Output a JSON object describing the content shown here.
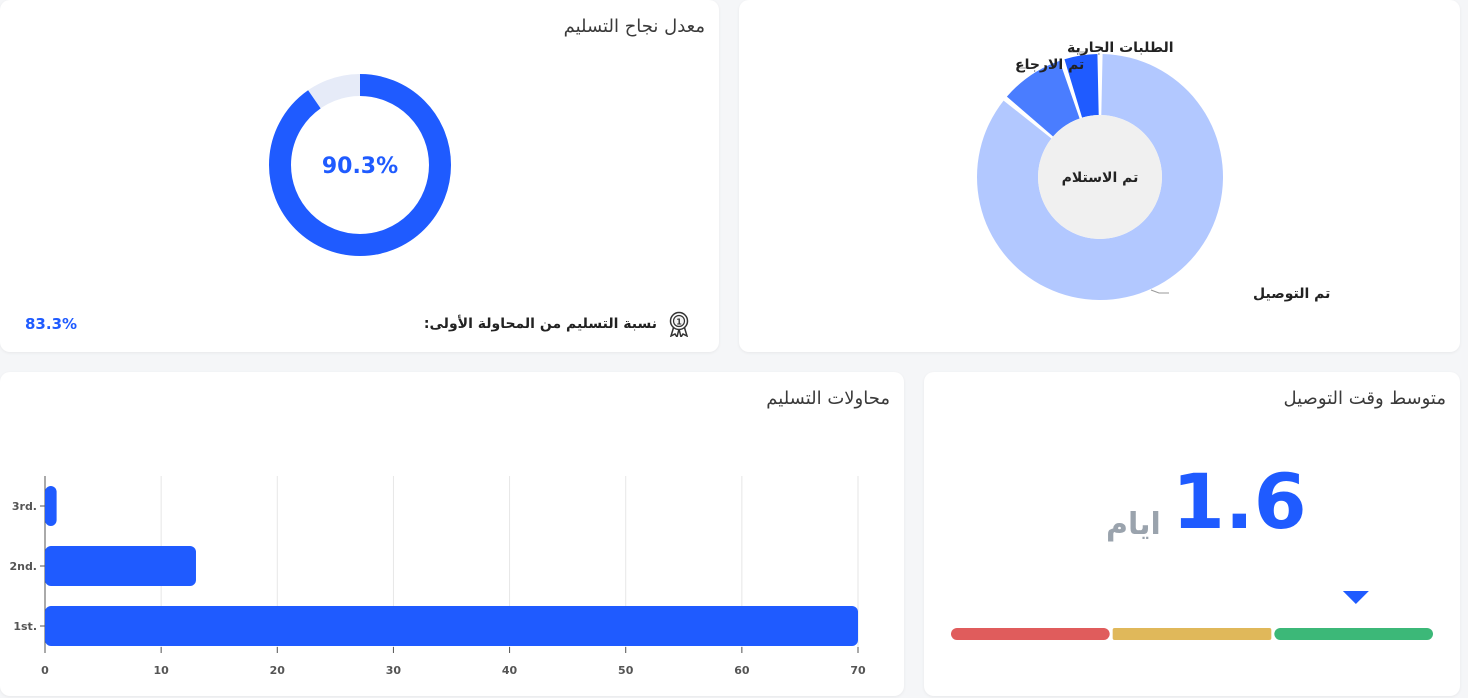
{
  "success_card": {
    "title": "معدل نجاح التسليم",
    "rate_label": "90.3%",
    "rate_value": 90.3,
    "first_attempt_label": "نسبة التسليم من المحاولة الأولى:",
    "first_attempt_value": "83.3%",
    "ring_color": "#1f5bff",
    "ring_rest_color": "#e6ebf8",
    "icon": "award-medal-icon"
  },
  "status_card": {
    "center_label": "تم الاستلام",
    "slices": [
      {
        "label": "تم التوصيل",
        "value": 86,
        "color": "#b2c8ff"
      },
      {
        "label": "تم الارجاع",
        "value": 9,
        "color": "#4a7dff"
      },
      {
        "label": "الطلبات الجارية",
        "value": 5,
        "color": "#1f5bff"
      }
    ]
  },
  "attempts_card": {
    "title": "محاولات التسليم",
    "chart_data": {
      "type": "bar",
      "orientation": "horizontal",
      "categories": [
        "1st.",
        "2nd.",
        "3rd."
      ],
      "values": [
        70,
        13,
        1
      ],
      "xlim": [
        0,
        70
      ],
      "xticks": [
        "0",
        "10",
        "20",
        "30",
        "40",
        "50",
        "60",
        "70"
      ],
      "grid": true,
      "color": "#1f5bff"
    }
  },
  "avg_card": {
    "title": "متوسط وقت التوصيل",
    "value": "1.6",
    "unit": "ايام",
    "scale_colors": [
      "#e05c5c",
      "#e0b85a",
      "#3cb878"
    ],
    "marker_color": "#1f5bff",
    "marker_position": 0.84
  }
}
